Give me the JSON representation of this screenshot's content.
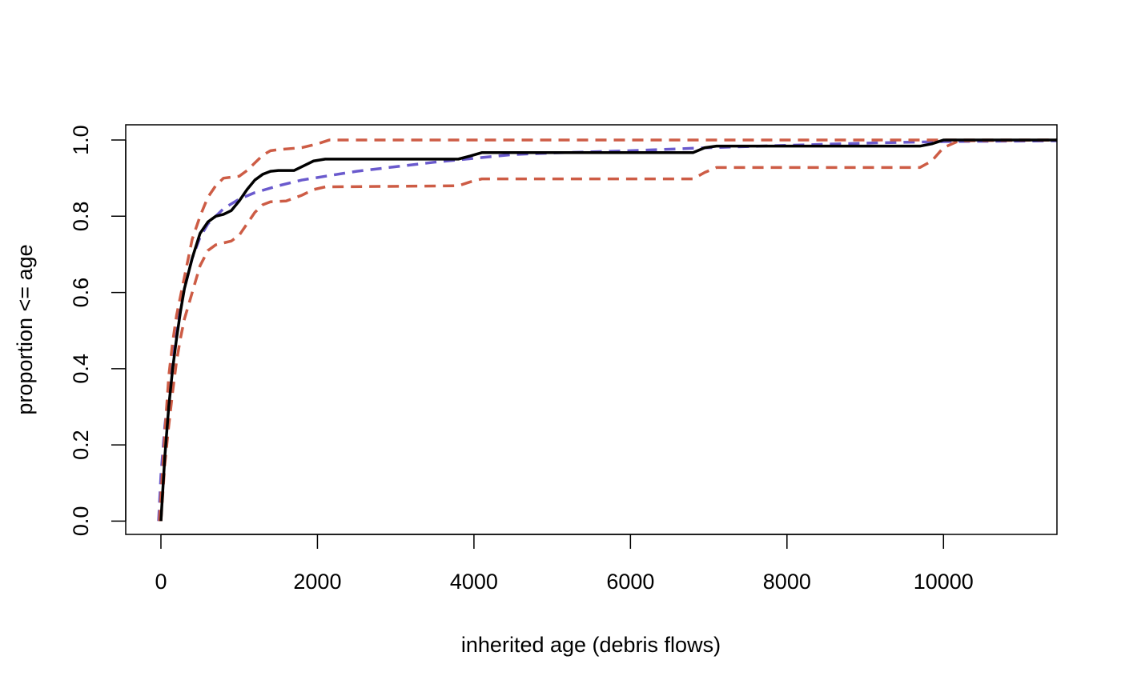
{
  "chart_data": {
    "type": "line",
    "title": "",
    "xlabel": "inherited age (debris flows)",
    "ylabel": "proportion <= age",
    "xlim": [
      -450,
      11450
    ],
    "ylim": [
      -0.035,
      1.04
    ],
    "x_ticks": [
      0,
      2000,
      4000,
      6000,
      8000,
      10000
    ],
    "y_ticks": [
      0.0,
      0.2,
      0.4,
      0.6,
      0.8,
      1.0
    ],
    "x_tick_labels": [
      "0",
      "2000",
      "4000",
      "6000",
      "8000",
      "10000"
    ],
    "y_tick_labels": [
      "0.0",
      "0.2",
      "0.4",
      "0.6",
      "0.8",
      "1.0"
    ],
    "grid": false,
    "legend": "none",
    "series": [
      {
        "color": "#000000",
        "dash": "solid",
        "points": [
          [
            0,
            0.0
          ],
          [
            50,
            0.17
          ],
          [
            100,
            0.3
          ],
          [
            150,
            0.4
          ],
          [
            200,
            0.48
          ],
          [
            250,
            0.55
          ],
          [
            300,
            0.61
          ],
          [
            400,
            0.69
          ],
          [
            500,
            0.755
          ],
          [
            600,
            0.785
          ],
          [
            700,
            0.8
          ],
          [
            800,
            0.805
          ],
          [
            900,
            0.815
          ],
          [
            1000,
            0.84
          ],
          [
            1100,
            0.87
          ],
          [
            1200,
            0.895
          ],
          [
            1300,
            0.91
          ],
          [
            1400,
            0.918
          ],
          [
            1500,
            0.92
          ],
          [
            1700,
            0.92
          ],
          [
            1800,
            0.93
          ],
          [
            1950,
            0.945
          ],
          [
            2100,
            0.95
          ],
          [
            3800,
            0.95
          ],
          [
            3950,
            0.958
          ],
          [
            4100,
            0.967
          ],
          [
            6800,
            0.967
          ],
          [
            6950,
            0.98
          ],
          [
            7100,
            0.984
          ],
          [
            9700,
            0.984
          ],
          [
            9850,
            0.99
          ],
          [
            10000,
            1.0
          ],
          [
            11450,
            1.0
          ]
        ]
      },
      {
        "color": "#6a5acd",
        "dash": "dashed",
        "points": [
          [
            -30,
            0.0
          ],
          [
            0,
            0.12
          ],
          [
            50,
            0.25
          ],
          [
            100,
            0.34
          ],
          [
            150,
            0.42
          ],
          [
            200,
            0.49
          ],
          [
            250,
            0.56
          ],
          [
            300,
            0.61
          ],
          [
            400,
            0.69
          ],
          [
            500,
            0.745
          ],
          [
            600,
            0.78
          ],
          [
            800,
            0.82
          ],
          [
            1000,
            0.845
          ],
          [
            1200,
            0.862
          ],
          [
            1500,
            0.88
          ],
          [
            1800,
            0.895
          ],
          [
            2100,
            0.905
          ],
          [
            2500,
            0.918
          ],
          [
            3000,
            0.93
          ],
          [
            3500,
            0.942
          ],
          [
            4000,
            0.952
          ],
          [
            4500,
            0.962
          ],
          [
            5000,
            0.966
          ],
          [
            6000,
            0.972
          ],
          [
            7000,
            0.98
          ],
          [
            8000,
            0.986
          ],
          [
            9000,
            0.992
          ],
          [
            10000,
            0.996
          ],
          [
            11450,
            0.998
          ]
        ]
      },
      {
        "color": "#cd5c45",
        "dash": "dashed",
        "points": [
          [
            -20,
            0.0
          ],
          [
            20,
            0.13
          ],
          [
            60,
            0.26
          ],
          [
            100,
            0.38
          ],
          [
            150,
            0.47
          ],
          [
            200,
            0.54
          ],
          [
            300,
            0.64
          ],
          [
            400,
            0.74
          ],
          [
            500,
            0.8
          ],
          [
            600,
            0.85
          ],
          [
            700,
            0.88
          ],
          [
            800,
            0.9
          ],
          [
            1000,
            0.905
          ],
          [
            1100,
            0.92
          ],
          [
            1200,
            0.94
          ],
          [
            1300,
            0.96
          ],
          [
            1400,
            0.972
          ],
          [
            1500,
            0.975
          ],
          [
            1800,
            0.98
          ],
          [
            2000,
            0.99
          ],
          [
            2150,
            1.0
          ],
          [
            11450,
            1.0
          ]
        ]
      },
      {
        "color": "#cd5c45",
        "dash": "dashed",
        "points": [
          [
            0,
            0.0
          ],
          [
            50,
            0.15
          ],
          [
            100,
            0.25
          ],
          [
            150,
            0.34
          ],
          [
            200,
            0.42
          ],
          [
            250,
            0.48
          ],
          [
            300,
            0.53
          ],
          [
            400,
            0.6
          ],
          [
            500,
            0.67
          ],
          [
            600,
            0.71
          ],
          [
            700,
            0.725
          ],
          [
            900,
            0.735
          ],
          [
            1000,
            0.75
          ],
          [
            1100,
            0.78
          ],
          [
            1200,
            0.81
          ],
          [
            1300,
            0.83
          ],
          [
            1400,
            0.838
          ],
          [
            1600,
            0.84
          ],
          [
            1800,
            0.855
          ],
          [
            1950,
            0.87
          ],
          [
            2100,
            0.877
          ],
          [
            3800,
            0.88
          ],
          [
            3950,
            0.89
          ],
          [
            4100,
            0.898
          ],
          [
            6800,
            0.898
          ],
          [
            6950,
            0.915
          ],
          [
            7100,
            0.928
          ],
          [
            9700,
            0.928
          ],
          [
            9850,
            0.945
          ],
          [
            10000,
            0.98
          ],
          [
            10200,
            0.998
          ],
          [
            11450,
            1.0
          ]
        ]
      }
    ]
  }
}
